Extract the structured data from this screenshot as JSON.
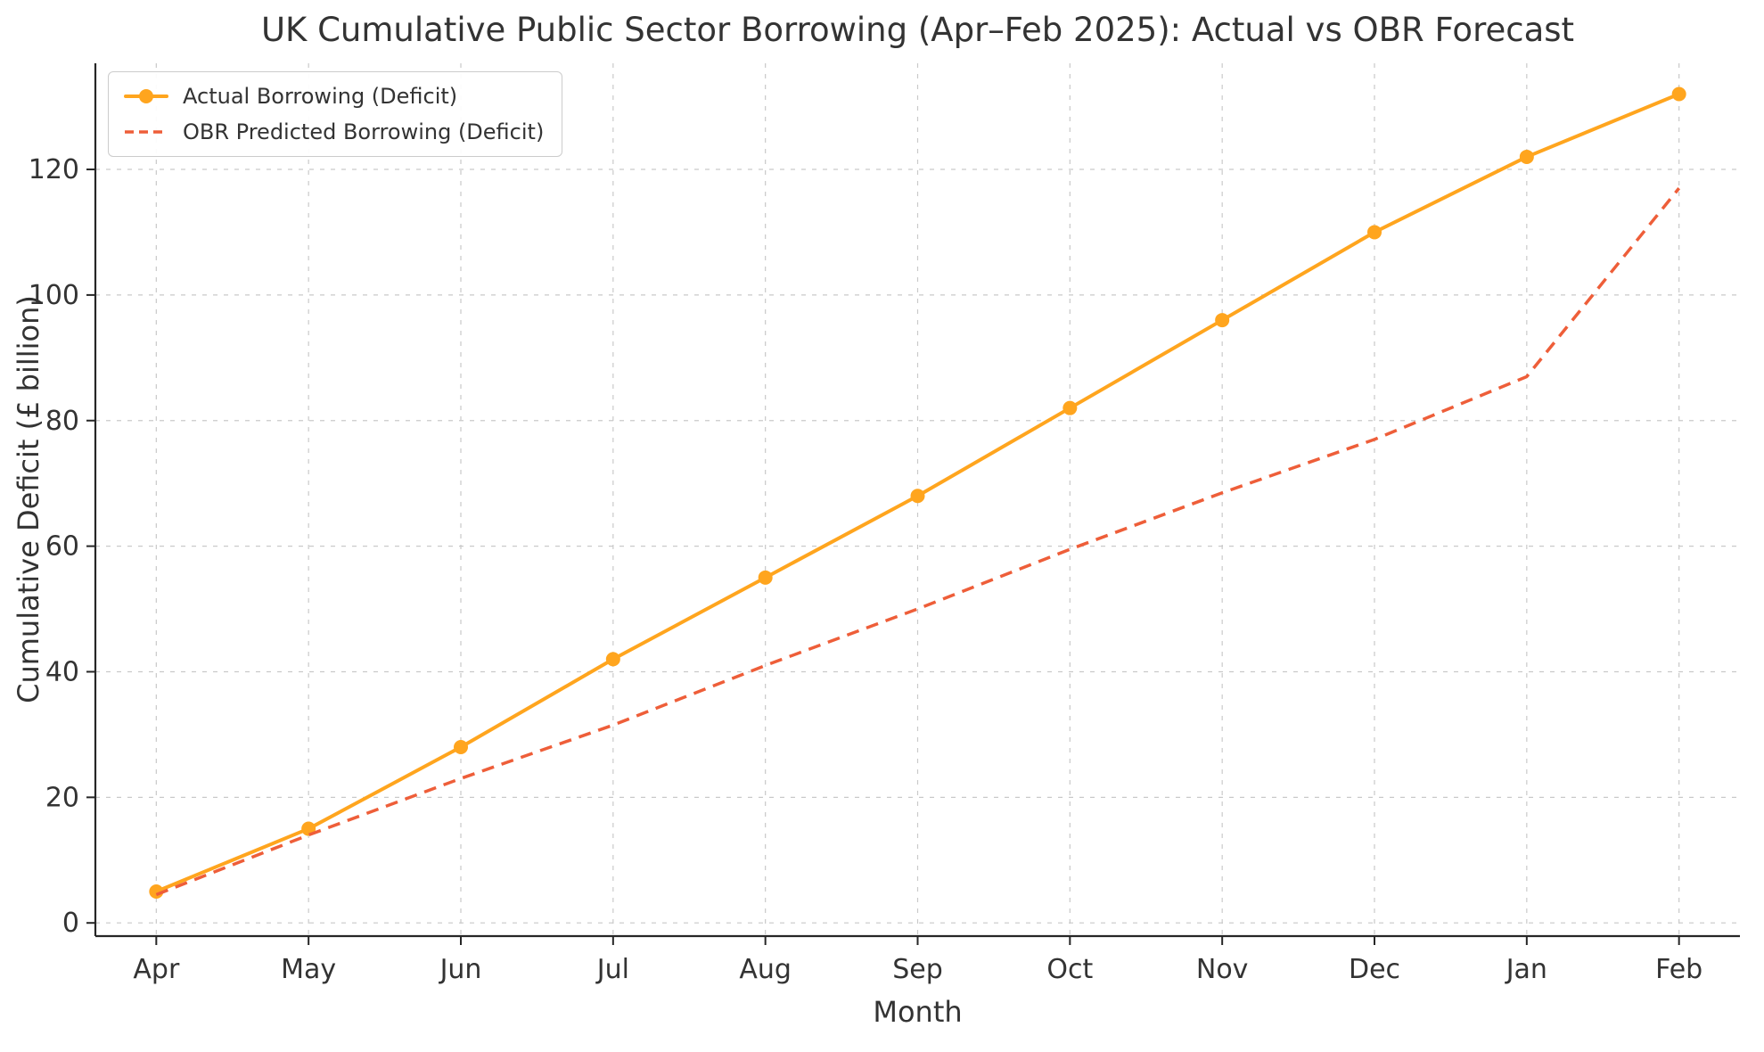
{
  "chart_data": {
    "type": "line",
    "title": "UK Cumulative Public Sector Borrowing (Apr–Feb 2025): Actual vs OBR Forecast",
    "xlabel": "Month",
    "ylabel": "Cumulative Deficit (£ billion)",
    "categories": [
      "Apr",
      "May",
      "Jun",
      "Jul",
      "Aug",
      "Sep",
      "Oct",
      "Nov",
      "Dec",
      "Jan",
      "Feb"
    ],
    "yticks": [
      0,
      20,
      40,
      60,
      80,
      100,
      120
    ],
    "ylim": [
      0,
      137
    ],
    "grid": true,
    "grid_style": "dashed",
    "legend_position": "upper left",
    "series": [
      {
        "name": "Actual Borrowing (Deficit)",
        "color": "#ffa51e",
        "style": "solid",
        "marker": "circle",
        "values": [
          5,
          15,
          28,
          42,
          55,
          68,
          82,
          96,
          110,
          122,
          132
        ]
      },
      {
        "name": "OBR Predicted Borrowing (Deficit)",
        "color": "#ee5e39",
        "style": "dashed",
        "marker": "none",
        "values": [
          4.5,
          14,
          23,
          31.5,
          41,
          50,
          59.5,
          68.5,
          77,
          87,
          117
        ]
      }
    ]
  },
  "style": {
    "background": "#ffffff",
    "spine_color": "#262626",
    "grid_color": "#c9c9c9",
    "text_color": "#333333"
  }
}
